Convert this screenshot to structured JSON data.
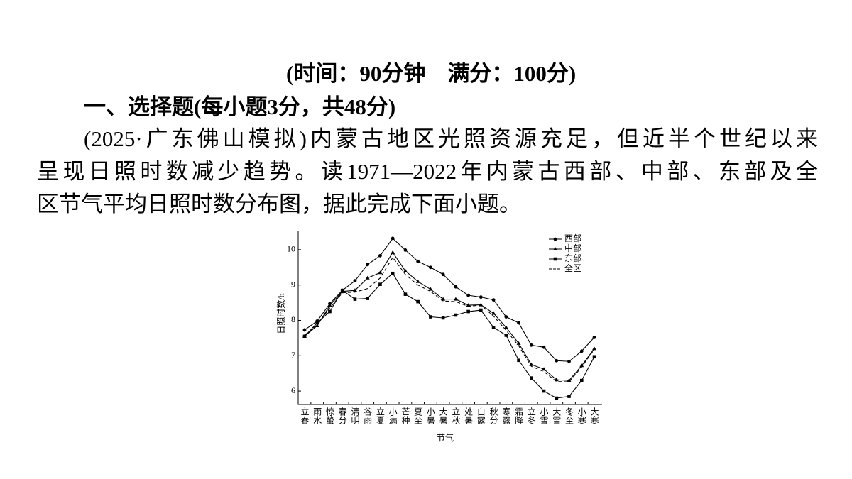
{
  "header": {
    "time_info": "(时间：90分钟　满分：100分)",
    "section": "一、选择题(每小题3分，共48分)"
  },
  "paragraph": {
    "lines": [
      "(2025·广东佛山模拟)内蒙古地区光照资源充足，但近半个世纪以来",
      "呈现日照时数减少趋势。读1971—2022年内蒙古西部、中部、东部及全",
      "区节气平均日照时数分布图，据此完成下面小题。"
    ]
  },
  "chart_data": {
    "type": "line",
    "x_label": "节气",
    "y_label": "日照时数/h",
    "categories": [
      "立春",
      "雨水",
      "惊蛰",
      "春分",
      "清明",
      "谷雨",
      "立夏",
      "小满",
      "芒种",
      "夏至",
      "小暑",
      "大暑",
      "立秋",
      "处暑",
      "白露",
      "秋分",
      "寒露",
      "霜降",
      "立冬",
      "小雪",
      "大雪",
      "冬至",
      "小寒",
      "大寒"
    ],
    "series": [
      {
        "name": "西部",
        "color": "#000000",
        "marker": "circle",
        "dashed": false,
        "values": [
          7.73,
          7.98,
          8.47,
          8.85,
          9.12,
          9.58,
          9.83,
          10.32,
          9.99,
          9.67,
          9.5,
          9.3,
          8.95,
          8.71,
          8.66,
          8.58,
          8.1,
          7.93,
          7.3,
          7.24,
          6.86,
          6.84,
          7.13,
          7.52
        ]
      },
      {
        "name": "中部",
        "color": "#000000",
        "marker": "triangle",
        "dashed": false,
        "values": [
          7.55,
          7.85,
          8.42,
          8.82,
          8.85,
          9.2,
          9.35,
          9.92,
          9.4,
          9.1,
          8.88,
          8.6,
          8.6,
          8.43,
          8.44,
          8.2,
          7.8,
          7.35,
          6.75,
          6.62,
          6.32,
          6.3,
          6.72,
          7.2
        ]
      },
      {
        "name": "东部",
        "color": "#000000",
        "marker": "square",
        "dashed": false,
        "values": [
          7.55,
          7.93,
          8.25,
          8.85,
          8.6,
          8.62,
          9.02,
          9.33,
          8.74,
          8.53,
          8.1,
          8.07,
          8.15,
          8.25,
          8.29,
          7.8,
          7.58,
          6.87,
          6.37,
          6.0,
          5.8,
          5.85,
          6.3,
          6.97
        ]
      },
      {
        "name": "全区",
        "color": "#000000",
        "marker": "none",
        "dashed": true,
        "values": [
          7.58,
          7.88,
          8.35,
          8.78,
          8.8,
          8.9,
          9.2,
          9.78,
          9.3,
          9.0,
          8.82,
          8.55,
          8.53,
          8.4,
          8.43,
          8.12,
          7.72,
          7.28,
          6.7,
          6.55,
          6.27,
          6.26,
          6.68,
          7.18
        ]
      }
    ],
    "ylim": [
      5.62,
      10.54
    ],
    "yticks": [
      6,
      7,
      8,
      9,
      10
    ],
    "grid": false,
    "legend": "top-right"
  }
}
